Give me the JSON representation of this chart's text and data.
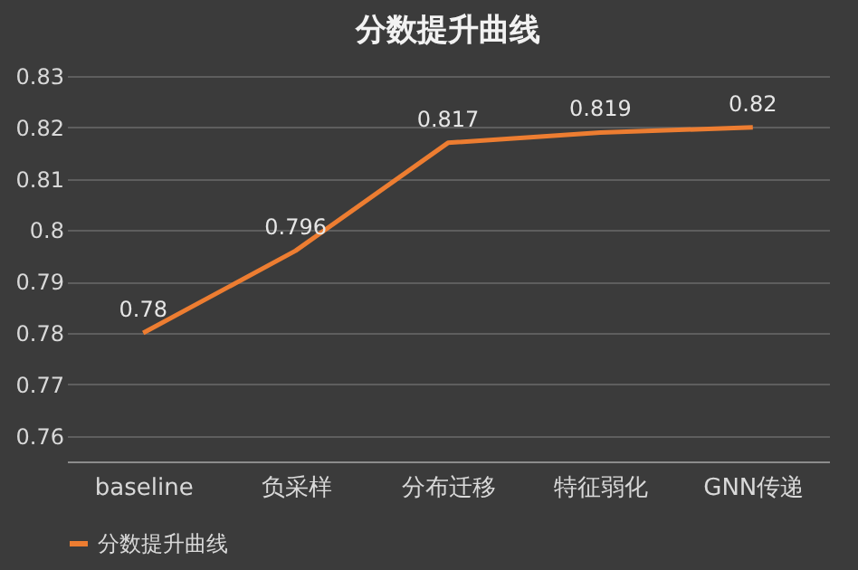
{
  "chart_data": {
    "type": "line",
    "title": "分数提升曲线",
    "categories": [
      "baseline",
      "负采样",
      "分布迁移",
      "特征弱化",
      "GNN传递"
    ],
    "series": [
      {
        "name": "分数提升曲线",
        "color": "#ed7d31",
        "values": [
          0.78,
          0.796,
          0.817,
          0.819,
          0.82
        ]
      }
    ],
    "ylim": [
      0.755,
      0.83
    ],
    "yticks": [
      0.76,
      0.77,
      0.78,
      0.79,
      0.8,
      0.81,
      0.82,
      0.83
    ],
    "grid": "y",
    "legend": "bottom",
    "data_labels": true,
    "marker": "none",
    "line_style": "solid"
  }
}
